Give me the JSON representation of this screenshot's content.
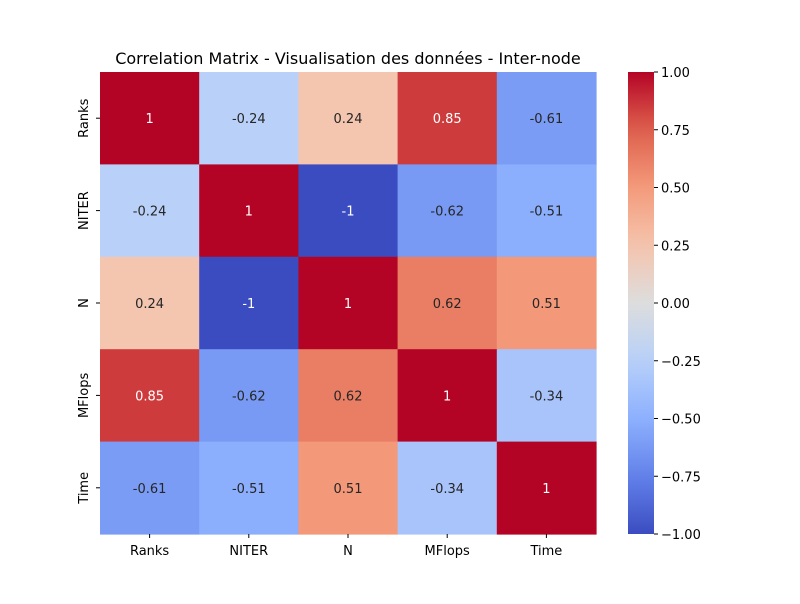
{
  "chart_data": {
    "type": "heatmap",
    "title": "Correlation Matrix - Visualisation des données - Inter-node",
    "xlabel": "",
    "ylabel": "",
    "row_labels": [
      "Ranks",
      "NITER",
      "N",
      "MFlops",
      "Time"
    ],
    "col_labels": [
      "Ranks",
      "NITER",
      "N",
      "MFlops",
      "Time"
    ],
    "values": [
      [
        1,
        -0.24,
        0.24,
        0.85,
        -0.61
      ],
      [
        -0.24,
        1,
        -1,
        -0.62,
        -0.51
      ],
      [
        0.24,
        -1,
        1,
        0.62,
        0.51
      ],
      [
        0.85,
        -0.62,
        0.62,
        1,
        -0.34
      ],
      [
        -0.61,
        -0.51,
        0.51,
        -0.34,
        1
      ]
    ],
    "annotations": [
      [
        "1",
        "-0.24",
        "0.24",
        "0.85",
        "-0.61"
      ],
      [
        "-0.24",
        "1",
        "-1",
        "-0.62",
        "-0.51"
      ],
      [
        "0.24",
        "-1",
        "1",
        "0.62",
        "0.51"
      ],
      [
        "0.85",
        "-0.62",
        "0.62",
        "1",
        "-0.34"
      ],
      [
        "-0.61",
        "-0.51",
        "0.51",
        "-0.34",
        "1"
      ]
    ],
    "vmin": -1,
    "vmax": 1,
    "colormap": "coolwarm",
    "colorbar_ticks": [
      1.0,
      0.75,
      0.5,
      0.25,
      0.0,
      -0.25,
      -0.5,
      -0.75,
      -1.0
    ],
    "colorbar_tick_labels": [
      "1.00",
      "0.75",
      "0.50",
      "0.25",
      "0.00",
      "−0.25",
      "−0.50",
      "−0.75",
      "−1.00"
    ]
  }
}
